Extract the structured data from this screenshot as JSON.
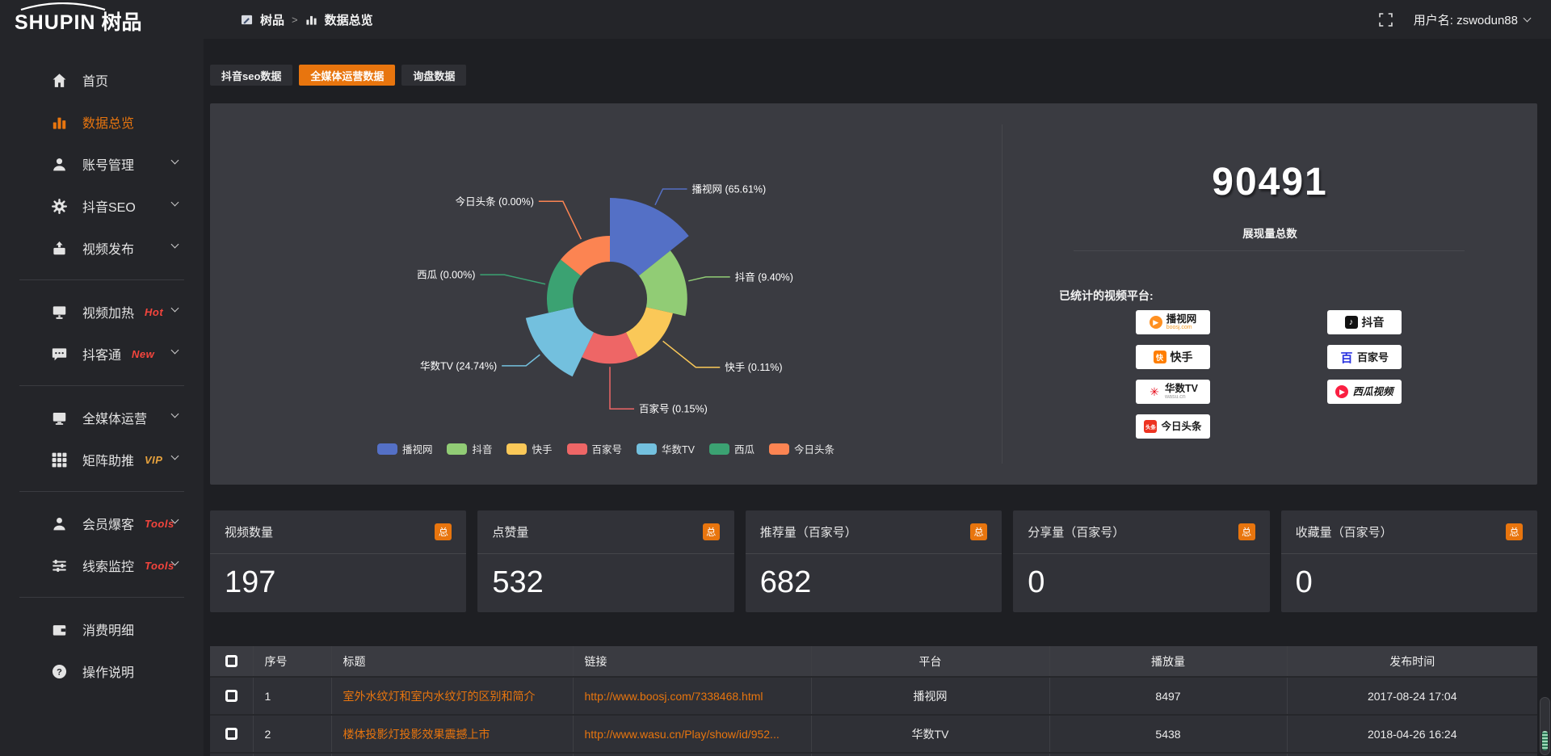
{
  "theme": {
    "accent": "#e8750e",
    "badge_red": "#f5453d",
    "badge_gold": "#e7a23d",
    "panel_bg": "#3a3b41",
    "page_bg": "#1e1f23",
    "bar_bg": "#242529"
  },
  "topbar": {
    "logo_en": "SHUPIN",
    "logo_cn": "树品",
    "breadcrumb_root": "树品",
    "breadcrumb_sep": ">",
    "breadcrumb_current": "数据总览",
    "user_label": "用户名: zswodun88"
  },
  "tabs": [
    {
      "label": "抖音seo数据",
      "active": false
    },
    {
      "label": "全媒体运营数据",
      "active": true
    },
    {
      "label": "询盘数据",
      "active": false
    }
  ],
  "sidebar": {
    "items": [
      {
        "label": "首页",
        "icon": "home-icon",
        "badge": "",
        "chevron": false
      },
      {
        "label": "数据总览",
        "icon": "chart-bars-icon",
        "badge": "",
        "chevron": false,
        "active": true
      },
      {
        "label": "账号管理",
        "icon": "user-icon",
        "badge": "",
        "chevron": true
      },
      {
        "label": "抖音SEO",
        "icon": "gear-icon",
        "badge": "",
        "chevron": true
      },
      {
        "label": "视频发布",
        "icon": "upload-video-icon",
        "badge": "",
        "chevron": true
      },
      {
        "label": "视频加热",
        "icon": "screen-heat-icon",
        "badge": "Hot",
        "chevron": true
      },
      {
        "label": "抖客通",
        "icon": "chat-icon",
        "badge": "New",
        "chevron": true
      },
      {
        "label": "全媒体运营",
        "icon": "monitor-icon",
        "badge": "",
        "chevron": true
      },
      {
        "label": "矩阵助推",
        "icon": "grid-icon",
        "badge": "VIP",
        "chevron": true
      },
      {
        "label": "会员爆客",
        "icon": "member-icon",
        "badge": "Tools",
        "chevron": true
      },
      {
        "label": "线索监控",
        "icon": "sliders-icon",
        "badge": "Tools",
        "chevron": true
      },
      {
        "label": "消费明细",
        "icon": "wallet-icon",
        "badge": "",
        "chevron": false
      },
      {
        "label": "操作说明",
        "icon": "help-icon",
        "badge": "",
        "chevron": false
      }
    ]
  },
  "chart_data": {
    "type": "pie",
    "subtype": "nightingale-rose",
    "title": "",
    "label_format": "{name} ({pct}%)",
    "legend_position": "bottom",
    "slices": [
      {
        "name": "播视网",
        "pct": 65.61,
        "color": "#5470c6"
      },
      {
        "name": "抖音",
        "pct": 9.4,
        "color": "#91cc75"
      },
      {
        "name": "快手",
        "pct": 0.11,
        "color": "#fac858"
      },
      {
        "name": "百家号",
        "pct": 0.15,
        "color": "#ee6666"
      },
      {
        "name": "华数TV",
        "pct": 24.74,
        "color": "#73c0de"
      },
      {
        "name": "西瓜",
        "pct": 0.0,
        "color": "#3ba272"
      },
      {
        "name": "今日头条",
        "pct": 0.0,
        "color": "#fc8452"
      }
    ],
    "legend": [
      "播视网",
      "抖音",
      "快手",
      "百家号",
      "华数TV",
      "西瓜",
      "今日头条"
    ]
  },
  "summary": {
    "total": "90491",
    "total_label": "展现量总数",
    "platforms_title": "已统计的视频平台:",
    "platforms": [
      {
        "name": "播视网",
        "sub": "boosj.com",
        "glyph": "▶",
        "color": "#ff9021"
      },
      {
        "name": "抖音",
        "sub": "",
        "glyph": "♪",
        "color": "#111111"
      },
      {
        "name": "快手",
        "sub": "",
        "glyph": "快",
        "color": "#ff7e00"
      },
      {
        "name": "百家号",
        "sub": "",
        "glyph": "百",
        "color": "#2932e1"
      },
      {
        "name": "华数TV",
        "sub": "wasu.cn",
        "glyph": "✳",
        "color": "#e60012"
      },
      {
        "name": "西瓜视频",
        "sub": "",
        "glyph": "▶",
        "color": "#fa1f41"
      },
      {
        "name": "今日头条",
        "sub": "",
        "glyph": "头条",
        "color": "#ed3321"
      }
    ]
  },
  "stat_cards": [
    {
      "label": "视频数量",
      "badge": "总",
      "value": "197"
    },
    {
      "label": "点赞量",
      "badge": "总",
      "value": "532"
    },
    {
      "label": "推荐量（百家号）",
      "badge": "总",
      "value": "682"
    },
    {
      "label": "分享量（百家号）",
      "badge": "总",
      "value": "0"
    },
    {
      "label": "收藏量（百家号）",
      "badge": "总",
      "value": "0"
    }
  ],
  "table": {
    "headers": {
      "index": "序号",
      "title": "标题",
      "link": "链接",
      "platform": "平台",
      "plays": "播放量",
      "publish_time": "发布时间"
    },
    "rows": [
      {
        "index": "1",
        "title": "室外水纹灯和室内水纹灯的区别和简介",
        "link": "http://www.boosj.com/7338468.html",
        "platform": "播视网",
        "plays": "8497",
        "publish_time": "2017-08-24 17:04"
      },
      {
        "index": "2",
        "title": "楼体投影灯投影效果震撼上市",
        "link": "http://www.wasu.cn/Play/show/id/952...",
        "platform": "华数TV",
        "plays": "5438",
        "publish_time": "2018-04-26 16:24"
      }
    ]
  }
}
